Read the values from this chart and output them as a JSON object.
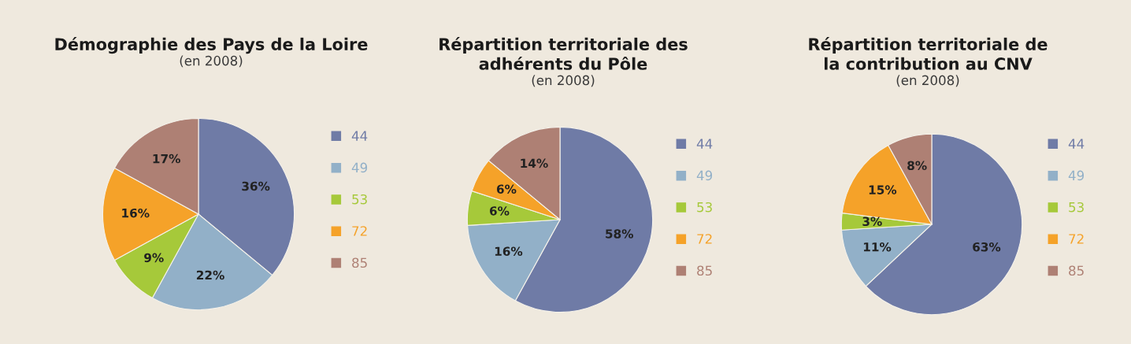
{
  "chart_data": [
    {
      "type": "pie",
      "title": "Démographie des Pays de la Loire",
      "subtitle": "(en 2008)",
      "categories": [
        "44",
        "49",
        "53",
        "72",
        "85"
      ],
      "values": [
        36,
        22,
        9,
        16,
        17
      ],
      "value_labels": [
        "36%",
        "22%",
        "9%",
        "16%",
        "17%"
      ],
      "colors": [
        "#6f7ba6",
        "#92b0c8",
        "#a6c93a",
        "#f5a229",
        "#ae8074"
      ],
      "legend": "right"
    },
    {
      "type": "pie",
      "title": "Répartition territoriale des\nadhérents du Pôle",
      "subtitle": "(en 2008)",
      "categories": [
        "44",
        "49",
        "53",
        "72",
        "85"
      ],
      "values": [
        58,
        16,
        6,
        6,
        14
      ],
      "value_labels": [
        "58%",
        "16%",
        "6%",
        "6%",
        "14%"
      ],
      "colors": [
        "#6f7ba6",
        "#92b0c8",
        "#a6c93a",
        "#f5a229",
        "#ae8074"
      ],
      "legend": "right"
    },
    {
      "type": "pie",
      "title": "Répartition territoriale de\nla contribution au CNV",
      "subtitle": "(en 2008)",
      "categories": [
        "44",
        "49",
        "53",
        "72",
        "85"
      ],
      "values": [
        63,
        11,
        3,
        15,
        8
      ],
      "value_labels": [
        "63%",
        "11%",
        "3%",
        "15%",
        "8%"
      ],
      "colors": [
        "#6f7ba6",
        "#92b0c8",
        "#a6c93a",
        "#f5a229",
        "#ae8074"
      ],
      "legend": "right"
    }
  ]
}
